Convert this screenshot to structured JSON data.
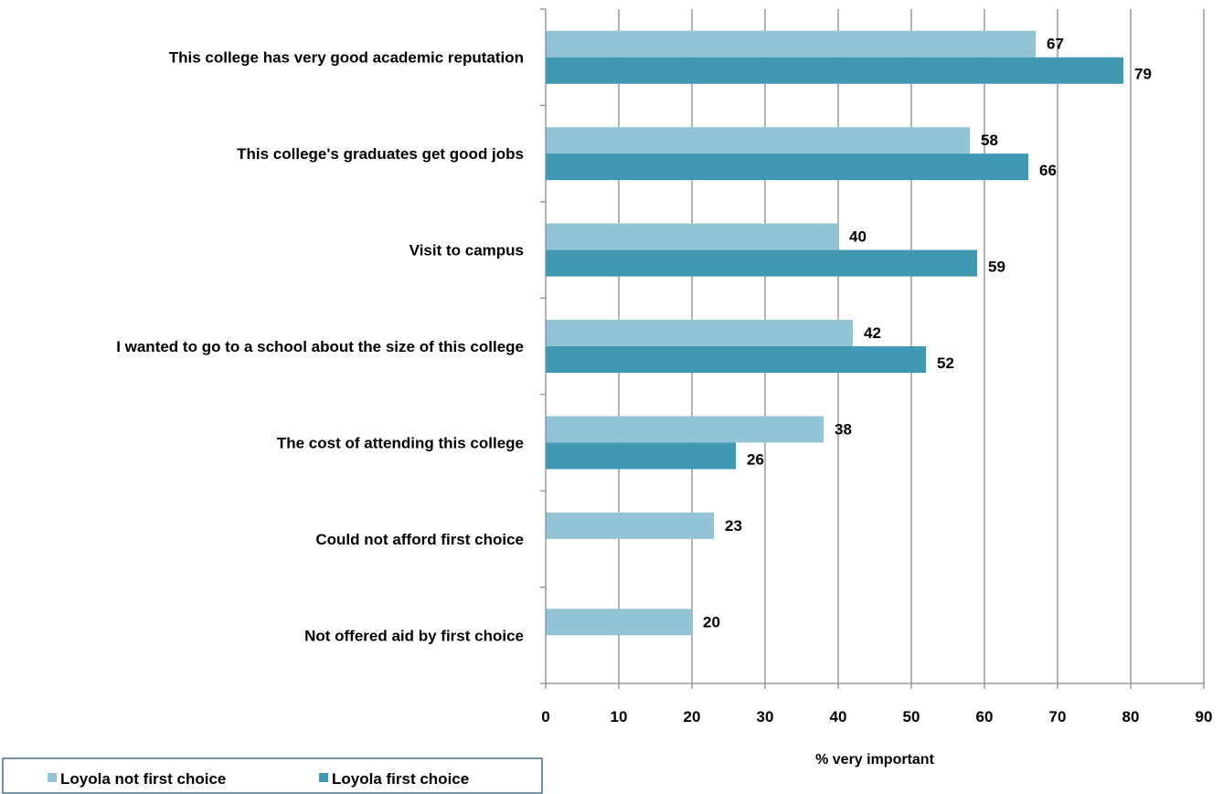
{
  "chart_data": {
    "type": "bar",
    "orientation": "horizontal",
    "categories": [
      "This college has very good academic reputation",
      "This college's graduates get good  jobs",
      "Visit to campus",
      "I wanted to go to a school about the size of this college",
      "The cost of attending this college",
      "Could not afford first choice",
      "Not offered aid by first choice"
    ],
    "series": [
      {
        "name": "Loyola not first choice",
        "color": "#93c4d6",
        "values": [
          67,
          58,
          40,
          42,
          38,
          23,
          20
        ],
        "labels": [
          "67",
          "58",
          "40",
          "42",
          "38",
          "23",
          "20"
        ]
      },
      {
        "name": "Loyola first choice",
        "color": "#4198b1",
        "values": [
          79,
          66,
          59,
          52,
          26,
          null,
          null
        ],
        "labels": [
          "79",
          "66",
          "59",
          "52",
          "26",
          "",
          ""
        ]
      }
    ],
    "xlim": [
      0,
      90
    ],
    "xticks": [
      "0",
      "10",
      "20",
      "30",
      "40",
      "50",
      "60",
      "70",
      "80",
      "90"
    ],
    "xlabel": "% very important",
    "grid": "vertical",
    "legend": "bottom-left"
  }
}
